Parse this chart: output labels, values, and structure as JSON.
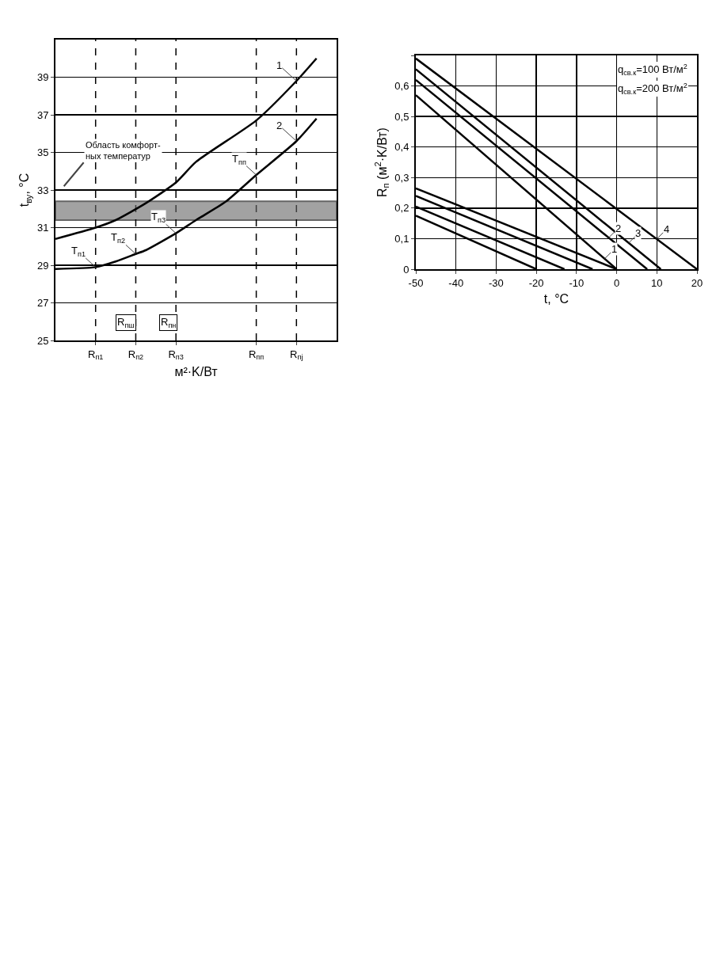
{
  "chart_data": [
    {
      "type": "line",
      "ylabel": "t$_{ву}$, °C",
      "xlabel": "м²·K/Вт",
      "categories": [
        null,
        null,
        null,
        null,
        "R$_{п1}$",
        null,
        null,
        null,
        "R$_{п2}$",
        null,
        null,
        null,
        "R$_{п3}$",
        null,
        null,
        null,
        null,
        null,
        null,
        null,
        "R$_{пп}$",
        null,
        null,
        null,
        "R$_{пj}$",
        null,
        null,
        null,
        null
      ],
      "ylim": [
        25,
        41
      ],
      "yticks": [
        25,
        27,
        29,
        31,
        33,
        35,
        37,
        39
      ],
      "grid": "y",
      "line_style": "solid",
      "series": [
        {
          "color": "#000000",
          "values": [
            30.4,
            null,
            null,
            null,
            31.0,
            null,
            31.4,
            null,
            null,
            32.3,
            null,
            null,
            33.4,
            null,
            34.5,
            null,
            null,
            null,
            null,
            null,
            36.7,
            null,
            null,
            null,
            38.8,
            null,
            40.0,
            null,
            null
          ]
        },
        {
          "color": "#000000",
          "values": [
            28.8,
            null,
            null,
            null,
            28.9,
            null,
            29.2,
            null,
            29.6,
            29.8,
            null,
            null,
            30.7,
            null,
            31.4,
            null,
            null,
            32.4,
            null,
            null,
            33.8,
            null,
            null,
            null,
            35.6,
            null,
            36.8,
            null,
            null
          ]
        }
      ],
      "bands": [
        {
          "axis": "y",
          "from": 31.4,
          "to": 32.4,
          "label": "Область комфорт-\nных температур",
          "color": "#666666"
        }
      ],
      "ref_lines": [
        {
          "axis": "x",
          "value": "R$_{п1}$",
          "line_style": "dashed"
        },
        {
          "axis": "x",
          "value": "R$_{п2}$",
          "line_style": "dashed"
        },
        {
          "axis": "x",
          "value": "R$_{п3}$",
          "line_style": "dashed"
        },
        {
          "axis": "x",
          "value": "R$_{пп}$",
          "line_style": "dashed"
        },
        {
          "axis": "x",
          "value": "R$_{пj}$",
          "line_style": "dashed"
        }
      ],
      "annotations": [
        {
          "text": "1",
          "x": "R$_{пj}$",
          "y": 38.8
        },
        {
          "text": "2",
          "x": "R$_{пj}$",
          "y": 35.6
        },
        {
          "text": "T$_{п1}$",
          "x": "R$_{п1}$",
          "y": 28.9
        },
        {
          "text": "T$_{п2}$",
          "x": "R$_{п2}$",
          "y": 29.6
        },
        {
          "text": "T$_{п3}$",
          "x": "R$_{п3}$",
          "y": 30.7
        },
        {
          "text": "T$_{пп}$",
          "x": "R$_{пп}$",
          "y": 33.8
        },
        "R$_{пш}$",
        "R$_{пн}$"
      ]
    },
    {
      "type": "line",
      "ylabel": "R$_{п}$ (м$^{2}$·K/Вт)",
      "xlabel": "t, °C",
      "xlim": [
        -50,
        20
      ],
      "xticks": [
        -50,
        -40,
        -30,
        -20,
        -10,
        0,
        10,
        20
      ],
      "ylim": [
        0,
        0.7
      ],
      "yticks": [
        {
          "value": 0,
          "label": "0"
        },
        {
          "value": 0.1,
          "label": "0,1"
        },
        {
          "value": 0.2,
          "label": "0,2"
        },
        {
          "value": 0.3,
          "label": "0,3"
        },
        {
          "value": 0.4,
          "label": "0,4"
        },
        {
          "value": 0.5,
          "label": "0,5"
        },
        {
          "value": 0.6,
          "label": "0,6"
        },
        {
          "value": 0.7,
          "label": null
        }
      ],
      "grid": true,
      "line_style": "solid",
      "series": [
        {
          "color": "#000000",
          "x": [
            -50,
            0
          ],
          "values": [
            0.57,
            0
          ]
        },
        {
          "color": "#000000",
          "x": [
            -50,
            7.6
          ],
          "values": [
            0.62,
            0
          ]
        },
        {
          "color": "#000000",
          "x": [
            -50,
            11
          ],
          "values": [
            0.655,
            0
          ]
        },
        {
          "color": "#000000",
          "x": [
            -50,
            20
          ],
          "values": [
            0.69,
            0
          ]
        },
        {
          "color": "#000000",
          "x": [
            -50,
            -20
          ],
          "values": [
            0.175,
            0
          ]
        },
        {
          "color": "#000000",
          "x": [
            -50,
            -13
          ],
          "values": [
            0.205,
            0
          ]
        },
        {
          "color": "#000000",
          "x": [
            -50,
            -6
          ],
          "values": [
            0.24,
            0
          ]
        },
        {
          "color": "#000000",
          "x": [
            -50,
            0
          ],
          "values": [
            0.265,
            0
          ]
        }
      ],
      "annotations": [
        "q$_{св.к}$=100 Вт/м$^{2}$",
        "q$_{св.к}$=200 Вт/м$^{2}$",
        {
          "text": "1",
          "x": -3,
          "y": 0.034
        },
        {
          "text": "2",
          "x": -2,
          "y": 0.103
        },
        {
          "text": "3",
          "x": 3,
          "y": 0.086
        },
        {
          "text": "4",
          "x": 10,
          "y": 0.099
        }
      ]
    }
  ]
}
